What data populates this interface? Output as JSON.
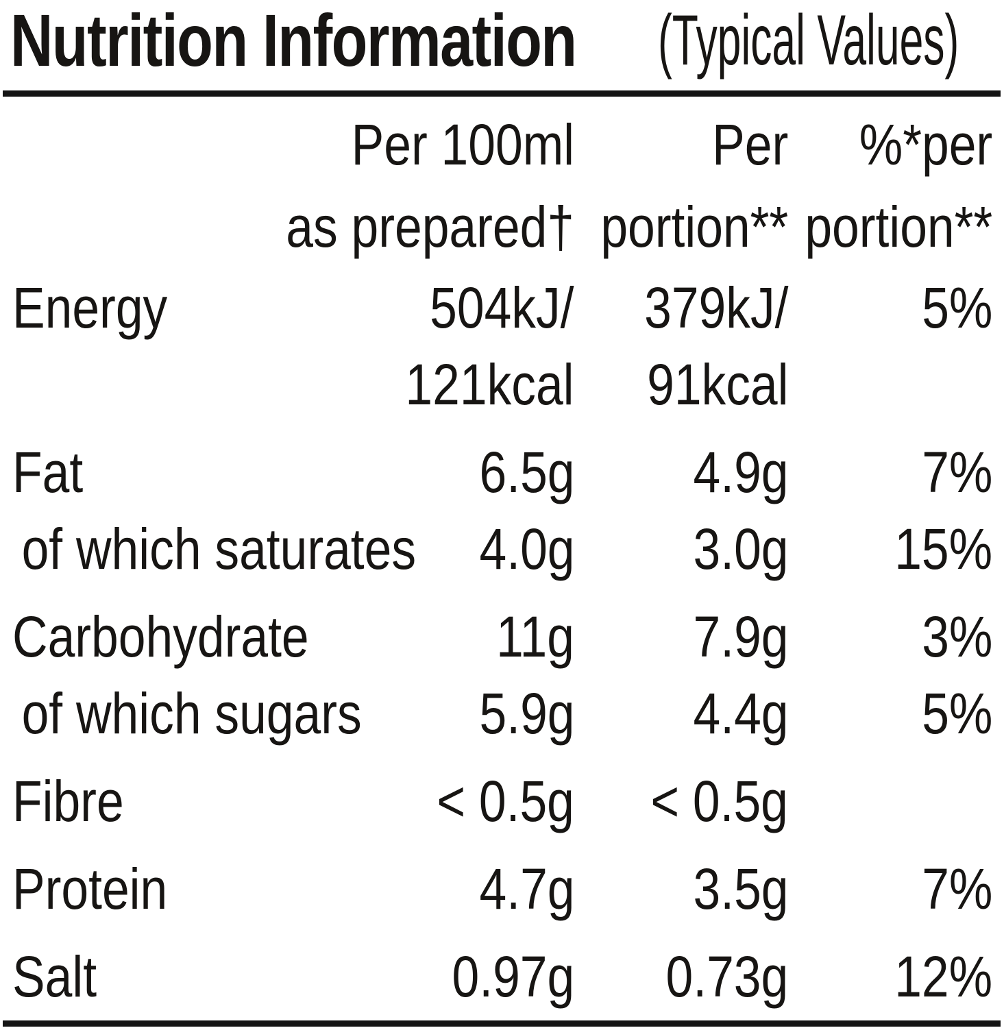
{
  "title": {
    "main": "Nutrition Information",
    "suffix": "(Typical Values)"
  },
  "header": {
    "per100": {
      "line1": "Per 100ml",
      "line2": "as prepared†"
    },
    "portion": {
      "line1": "Per",
      "line2": "portion**"
    },
    "percent": {
      "line1": "%*per",
      "line2": "portion**"
    }
  },
  "rows": [
    {
      "label": "Energy",
      "per100_kj": "504kJ/",
      "per100_kcal": "121kcal",
      "portion_kj": "379kJ/",
      "portion_kcal": "91kcal",
      "percent": "5%"
    },
    {
      "label": "Fat",
      "per100": "6.5g",
      "portion": "4.9g",
      "percent": "7%"
    },
    {
      "label": "of which saturates",
      "per100": "4.0g",
      "portion": "3.0g",
      "percent": "15%"
    },
    {
      "label": "Carbohydrate",
      "per100": "11g",
      "portion": "7.9g",
      "percent": "3%"
    },
    {
      "label": "of which sugars",
      "per100": "5.9g",
      "portion": "4.4g",
      "percent": "5%"
    },
    {
      "label": "Fibre",
      "per100": "< 0.5g",
      "portion": "< 0.5g",
      "percent": ""
    },
    {
      "label": "Protein",
      "per100": "4.7g",
      "portion": "3.5g",
      "percent": "7%"
    },
    {
      "label": "Salt",
      "per100": "0.97g",
      "portion": "0.73g",
      "percent": "12%"
    }
  ],
  "colors": {
    "text": "#171513",
    "rule": "#141414",
    "background": "#ffffff"
  }
}
